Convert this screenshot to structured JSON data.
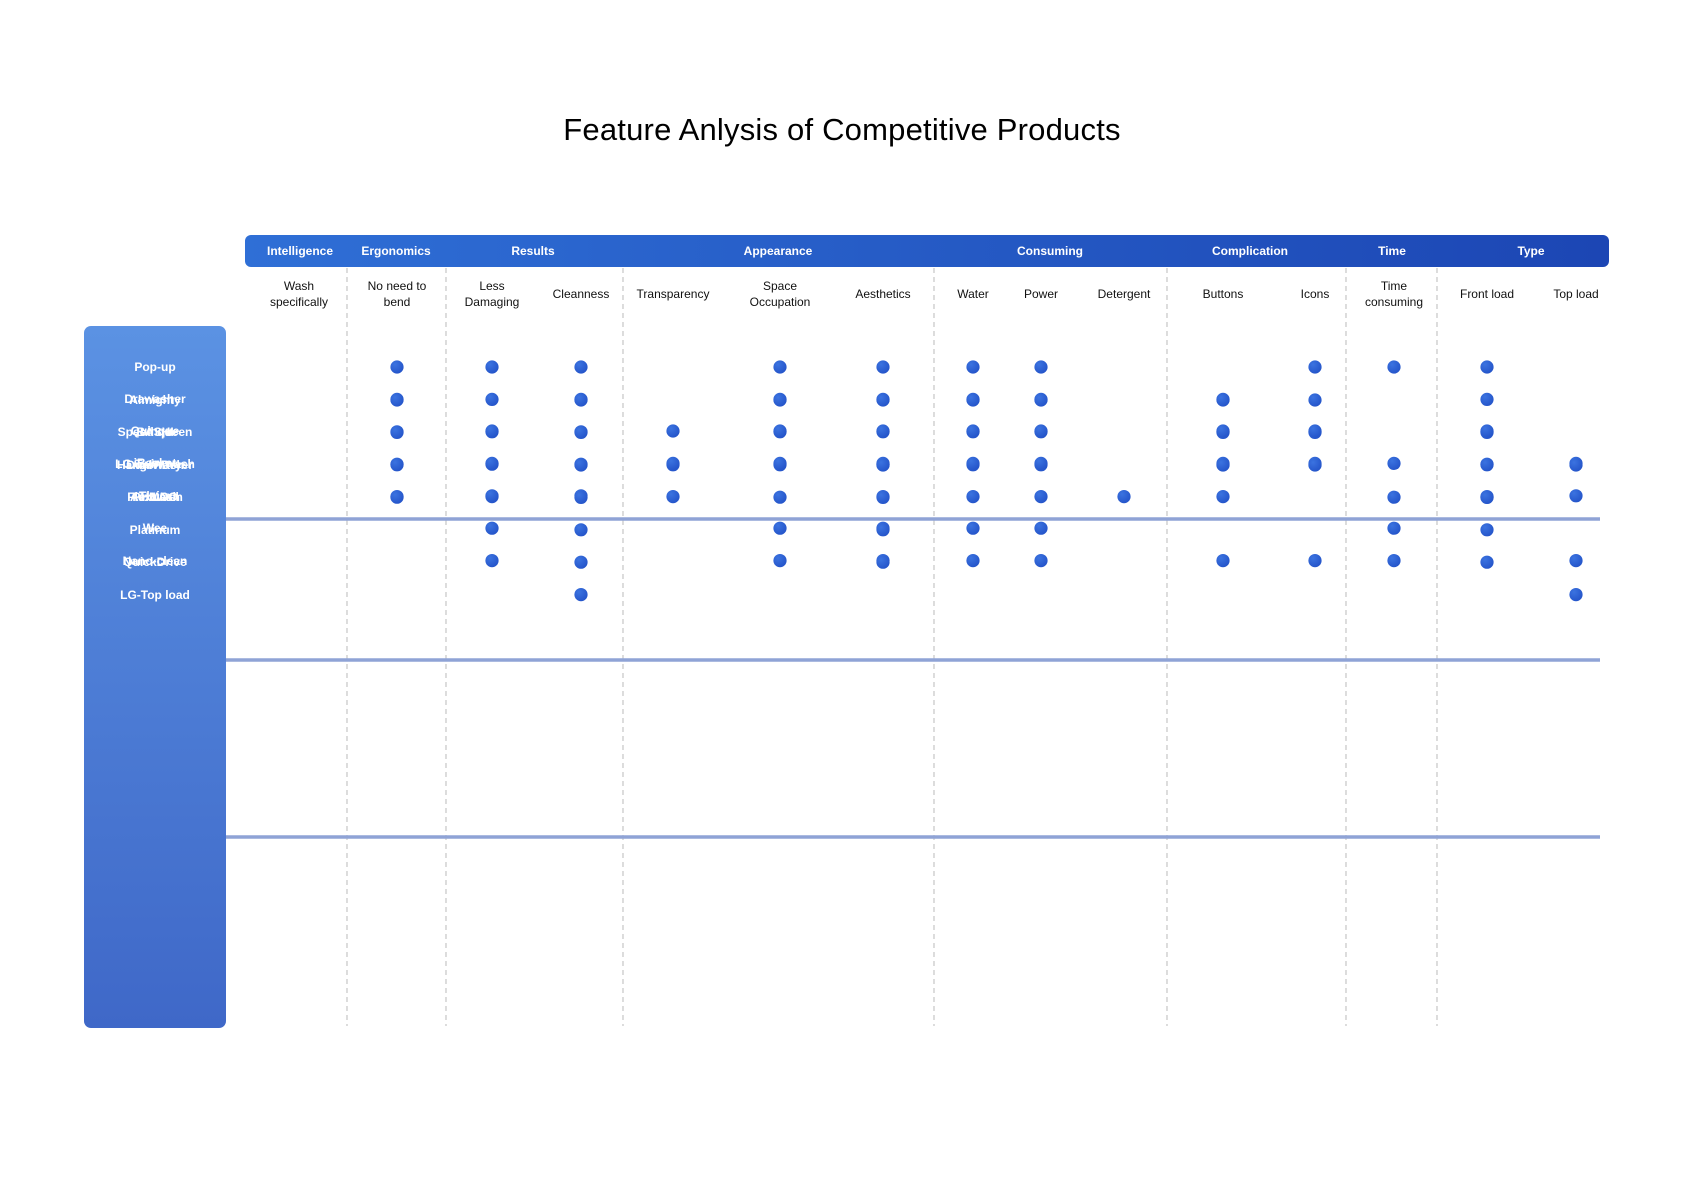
{
  "chart_data": {
    "type": "table",
    "title": "Feature Anlysis of Competitive Products",
    "categories": [
      {
        "name": "Intelligence",
        "columns": [
          "wash"
        ]
      },
      {
        "name": "Ergonomics",
        "columns": [
          "bend"
        ]
      },
      {
        "name": "Results",
        "columns": [
          "damage",
          "clean"
        ]
      },
      {
        "name": "Appearance",
        "columns": [
          "trans",
          "space",
          "aes"
        ]
      },
      {
        "name": "Consuming",
        "columns": [
          "water",
          "power",
          "det"
        ]
      },
      {
        "name": "Complication",
        "columns": [
          "buttons",
          "icons"
        ]
      },
      {
        "name": "Time",
        "columns": [
          "time"
        ]
      },
      {
        "name": "Type",
        "columns": [
          "front",
          "top"
        ]
      }
    ],
    "columns": [
      {
        "id": "wash",
        "label": "Wash specifically",
        "lines": [
          "Wash",
          "specifically"
        ]
      },
      {
        "id": "bend",
        "label": "No need to bend",
        "lines": [
          "No need to",
          "bend"
        ]
      },
      {
        "id": "damage",
        "label": "Less Damaging",
        "lines": [
          "Less",
          "Damaging"
        ]
      },
      {
        "id": "clean",
        "label": "Cleanness",
        "lines": [
          "Cleanness"
        ]
      },
      {
        "id": "trans",
        "label": "Transparency",
        "lines": [
          "Transparency"
        ]
      },
      {
        "id": "space",
        "label": "Space Occupation",
        "lines": [
          "Space",
          "Occupation"
        ]
      },
      {
        "id": "aes",
        "label": "Aesthetics",
        "lines": [
          "Aesthetics"
        ]
      },
      {
        "id": "water",
        "label": "Water",
        "lines": [
          "Water"
        ]
      },
      {
        "id": "power",
        "label": "Power",
        "lines": [
          "Power"
        ]
      },
      {
        "id": "det",
        "label": "Detergent",
        "lines": [
          "Detergent"
        ]
      },
      {
        "id": "buttons",
        "label": "Buttons",
        "lines": [
          "Buttons"
        ]
      },
      {
        "id": "icons",
        "label": "Icons",
        "lines": [
          "Icons"
        ]
      },
      {
        "id": "time",
        "label": "Time consuming",
        "lines": [
          "Time",
          "consuming"
        ]
      },
      {
        "id": "front",
        "label": "Front load",
        "lines": [
          "Front load"
        ]
      },
      {
        "id": "top",
        "label": "Top load",
        "lines": [
          "Top load"
        ]
      }
    ],
    "groups": [
      [
        {
          "name": "Pop-up",
          "features": [
            "bend",
            "damage",
            "clean",
            "space",
            "aes",
            "water",
            "power",
            "icons",
            "time",
            "front"
          ]
        },
        {
          "name": "Drawasher",
          "features": [
            "bend",
            "damage",
            "clean",
            "space",
            "aes",
            "water",
            "power",
            "buttons",
            "front"
          ]
        },
        {
          "name": "BASHI",
          "features": [
            "bend",
            "damage",
            "clean",
            "space",
            "aes",
            "water",
            "power",
            "buttons",
            "icons",
            "front"
          ]
        },
        {
          "name": "LG Twin wash",
          "features": [
            "bend",
            "damage",
            "clean",
            "aes",
            "front"
          ]
        },
        {
          "name": "Air wash",
          "features": [
            "bend",
            "damage",
            "trans",
            "aes",
            "water",
            "power",
            "det",
            "buttons",
            "front"
          ]
        }
      ],
      [
        {
          "name": "Almighty",
          "features": [
            "bend",
            "clean",
            "space",
            "aes",
            "water",
            "power",
            "buttons",
            "icons"
          ]
        },
        {
          "name": "Speed queen",
          "features": [
            "bend",
            "clean",
            "buttons",
            "icons",
            "front"
          ]
        },
        {
          "name": "Hanger Dryer",
          "features": [
            "bend",
            "trans",
            "space",
            "aes",
            "water",
            "power",
            "buttons",
            "icons",
            "front"
          ]
        },
        {
          "name": "PHILCO",
          "features": [
            "bend",
            "space",
            "time",
            "front"
          ]
        }
      ],
      [
        {
          "name": "Quinque",
          "features": [
            "damage",
            "trans",
            "space",
            "aes",
            "water",
            "power",
            "buttons",
            "icons",
            "front"
          ]
        },
        {
          "name": "iBasket",
          "features": [
            "damage",
            "trans",
            "space",
            "aes",
            "water",
            "power",
            "buttons",
            "icons",
            "time",
            "top"
          ]
        },
        {
          "name": "Tlsira",
          "features": [
            "damage",
            "clean",
            "top"
          ]
        },
        {
          "name": "Wee",
          "features": [
            "damage",
            "space",
            "aes",
            "water",
            "power",
            "time"
          ]
        },
        {
          "name": "Nano-clean",
          "features": [
            "damage",
            "space",
            "aes",
            "water",
            "power",
            "buttons",
            "icons",
            "time",
            "top"
          ]
        }
      ],
      [
        {
          "name": "DualWash",
          "features": [
            "clean",
            "aes",
            "buttons",
            "icons",
            "top"
          ]
        },
        {
          "name": "FlexWash",
          "features": [
            "clean",
            "aes",
            "front"
          ]
        },
        {
          "name": "Platinum",
          "features": [
            "clean",
            "aes",
            "front"
          ]
        },
        {
          "name": "QuickDrive",
          "features": [
            "clean",
            "aes",
            "front"
          ]
        },
        {
          "name": "LG-Top load",
          "features": [
            "clean",
            "top"
          ]
        }
      ]
    ],
    "colors": {
      "header_start": "#2f6fd6",
      "header_end": "#1c46b4",
      "panel_start": "#5b92e3",
      "panel_end": "#3f68c8",
      "dot": "#2454c9",
      "dot_highlight": "#3b73e0",
      "group_separator": "#8fa3d6",
      "dashed_divider": "#c6c6c6"
    }
  }
}
